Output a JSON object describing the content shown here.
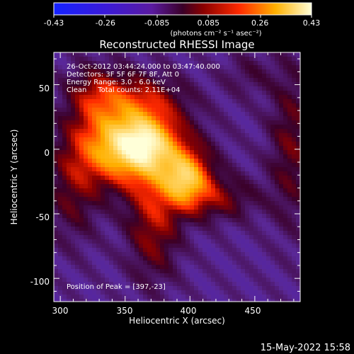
{
  "colorbar": {
    "tick_labels": [
      "-0.43",
      "-0.26",
      "-0.085",
      "0.085",
      "0.26",
      "0.43"
    ],
    "units_label": "(photons cm⁻² s⁻¹ asec⁻²)",
    "range": [
      -0.43,
      0.43
    ]
  },
  "chart_data": {
    "type": "heatmap",
    "title": "Reconstructed RHESSI Image",
    "xlabel": "Heliocentric X (arcsec)",
    "ylabel": "Heliocentric Y (arcsec)",
    "xlim": [
      295,
      485
    ],
    "ylim": [
      -118,
      75
    ],
    "x_ticks": [
      300,
      350,
      400,
      450
    ],
    "y_ticks": [
      50,
      0,
      -50,
      -100
    ],
    "annotations": [
      "26-Oct-2012 03:44:24.000 to 03:47:40.000",
      "Detectors: 3F 5F 6F 7F 8F, Att 0",
      "Energy Range: 3.0 - 6.0 keV",
      "Clean     Total counts: 2.11E+04"
    ],
    "peak_label": "Position of Peak = [397,-23]",
    "peak": {
      "x": 397,
      "y": -23,
      "value": 0.43
    },
    "sources": [
      {
        "x": 340,
        "y": 2,
        "amp": 0.31,
        "sx": 22,
        "sy": 20
      },
      {
        "x": 365,
        "y": 5,
        "amp": 0.28,
        "sx": 16,
        "sy": 15
      },
      {
        "x": 397,
        "y": -23,
        "amp": 0.3,
        "sx": 12,
        "sy": 14
      },
      {
        "x": 380,
        "y": -8,
        "amp": 0.16,
        "sx": 24,
        "sy": 22
      },
      {
        "x": 362,
        "y": 38,
        "amp": 0.16,
        "sx": 24,
        "sy": 14
      },
      {
        "x": 328,
        "y": 42,
        "amp": 0.14,
        "sx": 16,
        "sy": 16
      },
      {
        "x": 372,
        "y": -58,
        "amp": 0.16,
        "sx": 14,
        "sy": 30
      },
      {
        "x": 420,
        "y": -38,
        "amp": 0.13,
        "sx": 22,
        "sy": 12
      },
      {
        "x": 310,
        "y": -32,
        "amp": 0.11,
        "sx": 14,
        "sy": 28
      },
      {
        "x": 478,
        "y": 4,
        "amp": 0.12,
        "sx": 12,
        "sy": 44
      },
      {
        "x": 445,
        "y": 58,
        "amp": 0.06,
        "sx": 14,
        "sy": 12
      }
    ],
    "background": -0.11
  },
  "footer": {
    "timestamp": "15-May-2022 15:58"
  }
}
